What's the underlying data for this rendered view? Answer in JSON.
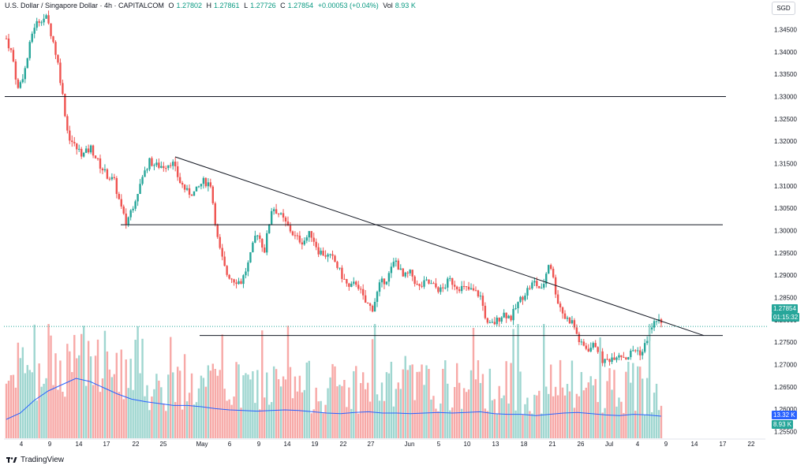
{
  "header": {
    "symbol": "U.S. Dollar / Singapore Dollar · 4h · CAPITALCOM",
    "open_label": "O",
    "open": "1.27802",
    "high_label": "H",
    "high": "1.27861",
    "low_label": "L",
    "low": "1.27726",
    "close_label": "C",
    "close": "1.27854",
    "change": "+0.00053 (+0.04%)",
    "vol_label": "Vol",
    "vol": "8.93 K"
  },
  "currency": "SGD",
  "brand": "TradingView",
  "price_labels": {
    "last_price": "1.27854",
    "countdown": "01:15:32",
    "vol_avg": "13.32 K",
    "vol_last": "8.93 K"
  },
  "colors": {
    "up": "#26a69a",
    "down": "#ef5350",
    "vol_up": "#9fd6d0",
    "vol_down": "#f7a9a7",
    "vol_ma": "#2962ff",
    "line": "#131722",
    "last_price_line": "#26a69a"
  },
  "chart_data": {
    "type": "candlestick",
    "y_axis_ticks": [
      "1.34500",
      "1.34000",
      "1.33500",
      "1.33000",
      "1.32500",
      "1.32000",
      "1.31500",
      "1.31000",
      "1.30500",
      "1.30000",
      "1.29500",
      "1.29000",
      "1.28500",
      "1.28000",
      "1.27500",
      "1.27000",
      "1.26500",
      "1.26000",
      "1.25500"
    ],
    "x_axis_ticks": [
      "4",
      "9",
      "14",
      "17",
      "22",
      "25",
      "May",
      "6",
      "9",
      "14",
      "19",
      "22",
      "27",
      "Jun",
      "5",
      "10",
      "13",
      "18",
      "21",
      "26",
      "Jul",
      "4",
      "9",
      "14",
      "17",
      "22"
    ],
    "ylim": [
      1.2535,
      1.3495
    ],
    "close_path": [
      {
        "t": 0,
        "c": 1.343
      },
      {
        "t": 1.5,
        "c": 1.3395
      },
      {
        "t": 3,
        "c": 1.3315
      },
      {
        "t": 5,
        "c": 1.3365
      },
      {
        "t": 7,
        "c": 1.3455
      },
      {
        "t": 9,
        "c": 1.3475
      },
      {
        "t": 10.5,
        "c": 1.3475
      },
      {
        "t": 12,
        "c": 1.343
      },
      {
        "t": 13.5,
        "c": 1.337
      },
      {
        "t": 14.5,
        "c": 1.331
      },
      {
        "t": 16,
        "c": 1.3215
      },
      {
        "t": 18,
        "c": 1.3185
      },
      {
        "t": 20,
        "c": 1.317
      },
      {
        "t": 22,
        "c": 1.3185
      },
      {
        "t": 24,
        "c": 1.315
      },
      {
        "t": 26,
        "c": 1.3125
      },
      {
        "t": 28,
        "c": 1.311
      },
      {
        "t": 29.5,
        "c": 1.306
      },
      {
        "t": 31,
        "c": 1.3015
      },
      {
        "t": 33,
        "c": 1.306
      },
      {
        "t": 35,
        "c": 1.311
      },
      {
        "t": 37,
        "c": 1.3155
      },
      {
        "t": 39,
        "c": 1.3145
      },
      {
        "t": 41,
        "c": 1.3145
      },
      {
        "t": 43,
        "c": 1.3155
      },
      {
        "t": 45,
        "c": 1.311
      },
      {
        "t": 47,
        "c": 1.3085
      },
      {
        "t": 49,
        "c": 1.3085
      },
      {
        "t": 51,
        "c": 1.311
      },
      {
        "t": 53,
        "c": 1.3105
      },
      {
        "t": 55,
        "c": 1.297
      },
      {
        "t": 57,
        "c": 1.2905
      },
      {
        "t": 59,
        "c": 1.289
      },
      {
        "t": 61,
        "c": 1.2885
      },
      {
        "t": 63,
        "c": 1.293
      },
      {
        "t": 65,
        "c": 1.3
      },
      {
        "t": 67,
        "c": 1.2955
      },
      {
        "t": 69,
        "c": 1.3055
      },
      {
        "t": 71,
        "c": 1.3035
      },
      {
        "t": 73,
        "c": 1.301
      },
      {
        "t": 75,
        "c": 1.2985
      },
      {
        "t": 77,
        "c": 1.2975
      },
      {
        "t": 79,
        "c": 1.2995
      },
      {
        "t": 81,
        "c": 1.2955
      },
      {
        "t": 83,
        "c": 1.2945
      },
      {
        "t": 85,
        "c": 1.2935
      },
      {
        "t": 87,
        "c": 1.29
      },
      {
        "t": 89,
        "c": 1.287
      },
      {
        "t": 91,
        "c": 1.2885
      },
      {
        "t": 93,
        "c": 1.284
      },
      {
        "t": 95,
        "c": 1.2825
      },
      {
        "t": 97,
        "c": 1.288
      },
      {
        "t": 99,
        "c": 1.2895
      },
      {
        "t": 101,
        "c": 1.2935
      },
      {
        "t": 103,
        "c": 1.2895
      },
      {
        "t": 105,
        "c": 1.2905
      },
      {
        "t": 107,
        "c": 1.287
      },
      {
        "t": 109,
        "c": 1.2885
      },
      {
        "t": 111,
        "c": 1.2875
      },
      {
        "t": 113,
        "c": 1.2865
      },
      {
        "t": 115,
        "c": 1.289
      },
      {
        "t": 117,
        "c": 1.2875
      },
      {
        "t": 119,
        "c": 1.287
      },
      {
        "t": 121,
        "c": 1.2865
      },
      {
        "t": 123,
        "c": 1.2855
      },
      {
        "t": 125,
        "c": 1.2785
      },
      {
        "t": 127,
        "c": 1.2795
      },
      {
        "t": 129,
        "c": 1.2815
      },
      {
        "t": 131,
        "c": 1.2805
      },
      {
        "t": 133,
        "c": 1.284
      },
      {
        "t": 135,
        "c": 1.2865
      },
      {
        "t": 137,
        "c": 1.2885
      },
      {
        "t": 139,
        "c": 1.2865
      },
      {
        "t": 141,
        "c": 1.2935
      },
      {
        "t": 143,
        "c": 1.2845
      },
      {
        "t": 145,
        "c": 1.2805
      },
      {
        "t": 147,
        "c": 1.2795
      },
      {
        "t": 149,
        "c": 1.2745
      },
      {
        "t": 151,
        "c": 1.2735
      },
      {
        "t": 153,
        "c": 1.2745
      },
      {
        "t": 155,
        "c": 1.2705
      },
      {
        "t": 157,
        "c": 1.2715
      },
      {
        "t": 159,
        "c": 1.2725
      },
      {
        "t": 161,
        "c": 1.2715
      },
      {
        "t": 163,
        "c": 1.2735
      },
      {
        "t": 165,
        "c": 1.2725
      },
      {
        "t": 167,
        "c": 1.2775
      },
      {
        "t": 169,
        "c": 1.2805
      },
      {
        "t": 170,
        "c": 1.2785
      }
    ],
    "last_price": 1.27854,
    "volume_ma_path": [
      0.3,
      0.4,
      0.6,
      0.75,
      0.85,
      0.95,
      0.9,
      0.8,
      0.7,
      0.62,
      0.58,
      0.55,
      0.52,
      0.52,
      0.5,
      0.47,
      0.45,
      0.44,
      0.43,
      0.44,
      0.45,
      0.44,
      0.42,
      0.4,
      0.39,
      0.41,
      0.42,
      0.4,
      0.4,
      0.39,
      0.4,
      0.41,
      0.4,
      0.41,
      0.42,
      0.39,
      0.38,
      0.38,
      0.36,
      0.38,
      0.4,
      0.41,
      0.39,
      0.37,
      0.36,
      0.38,
      0.37,
      0.35
    ],
    "support_resistance_lines": [
      1.33,
      1.3013,
      1.2765
    ],
    "trendline": {
      "start_price": 1.3165,
      "end_price": 1.2765
    }
  }
}
